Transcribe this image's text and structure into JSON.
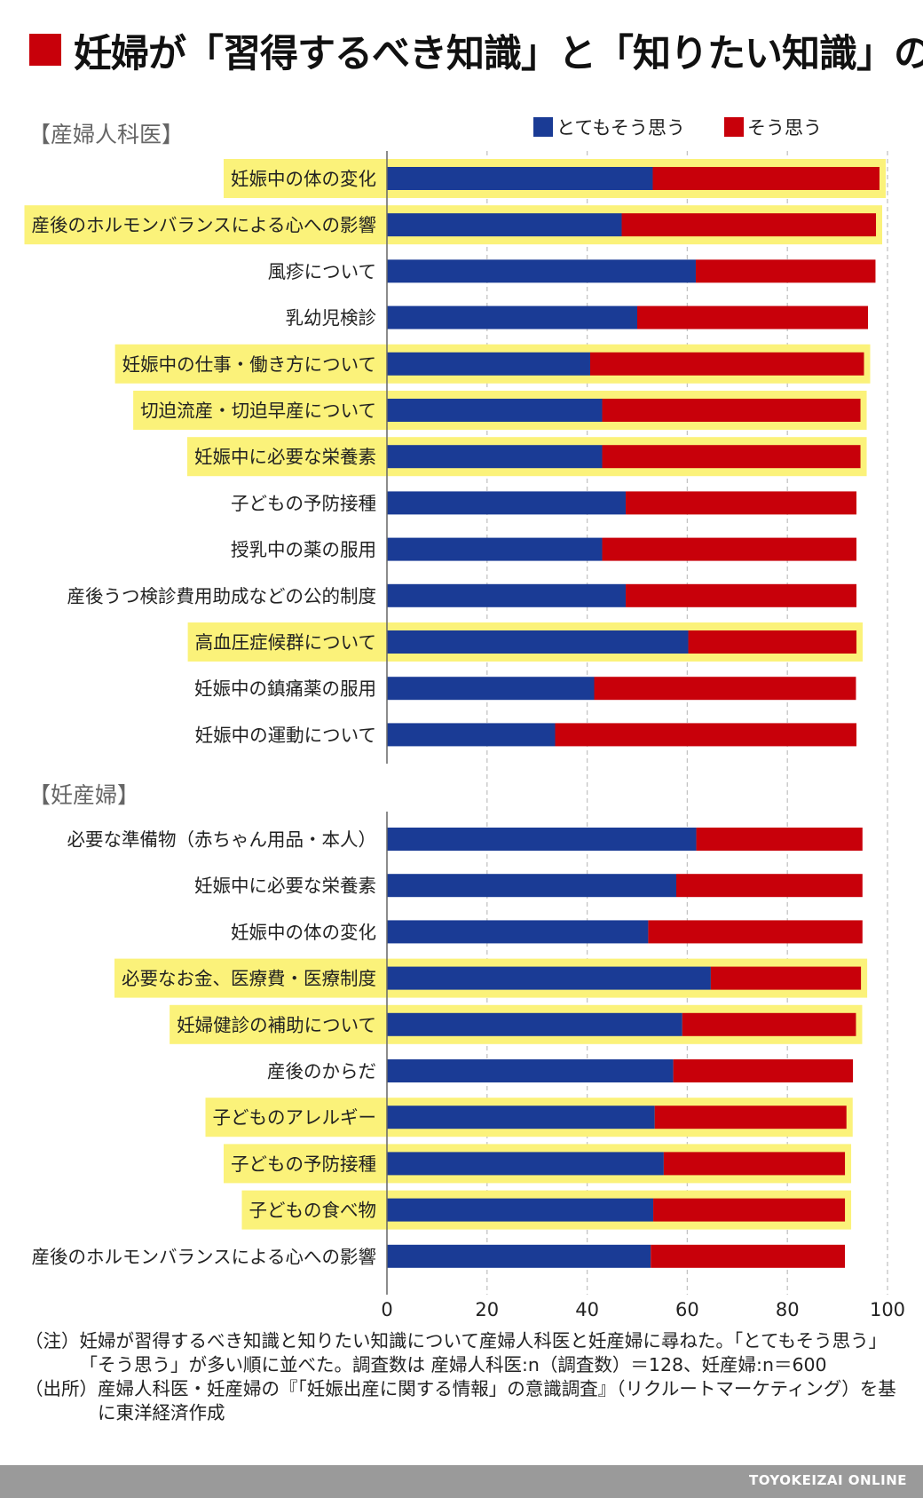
{
  "title": "妊婦が「習得するべき知識」と「知りたい知識」の差",
  "colors": {
    "title_mark": "#c8000a",
    "series_strong": "#1a3b95",
    "series_agree": "#c8000a",
    "highlight": "#fbf27a",
    "footer_bg": "#9a9a9a"
  },
  "chart_data": {
    "type": "bar",
    "orientation": "horizontal",
    "stacked": true,
    "x_ticks": [
      "0",
      "20",
      "40",
      "60",
      "80",
      "100"
    ],
    "x_unit": "(%)",
    "xlim": [
      0,
      100
    ],
    "grid": "vertical dashed",
    "legend_position": "top-right",
    "series_names": [
      "とてもそう思う",
      "そう思う"
    ],
    "groups": [
      {
        "label": "【産婦人科医】",
        "categories": [
          "妊娠中の体の変化",
          "産後のホルモンバランスによる心への影響",
          "風疹について",
          "乳幼児検診",
          "妊娠中の仕事・働き方について",
          "切迫流産・切迫早産について",
          "妊娠中に必要な栄養素",
          "子どもの予防接種",
          "授乳中の薬の服用",
          "産後うつ検診費用助成などの公的制度",
          "高血圧症候群について",
          "妊娠中の鎮痛薬の服用",
          "妊娠中の運動について"
        ],
        "highlighted": [
          true,
          true,
          false,
          false,
          true,
          true,
          true,
          false,
          false,
          false,
          true,
          false,
          false
        ],
        "series": [
          {
            "name": "とてもそう思う",
            "values": [
              53.1,
              46.9,
              61.7,
              50.0,
              40.6,
              43.0,
              43.0,
              47.7,
              43.0,
              47.7,
              60.2,
              41.4,
              33.6
            ]
          },
          {
            "name": "そう思う",
            "values": [
              45.3,
              50.8,
              35.9,
              46.1,
              54.7,
              51.6,
              51.6,
              46.1,
              50.8,
              46.1,
              33.6,
              52.3,
              60.2
            ]
          }
        ]
      },
      {
        "label": "【妊産婦】",
        "categories": [
          "必要な準備物（赤ちゃん用品・本人）",
          "妊娠中に必要な栄養素",
          "妊娠中の体の変化",
          "必要なお金、医療費・医療制度",
          "妊婦健診の補助について",
          "産後のからだ",
          "子どものアレルギー",
          "子どもの予防接種",
          "子どもの食べ物",
          "産後のホルモンバランスによる心への影響"
        ],
        "highlighted": [
          false,
          false,
          false,
          true,
          true,
          false,
          true,
          true,
          true,
          false
        ],
        "series": [
          {
            "name": "とてもそう思う",
            "values": [
              61.8,
              57.8,
              52.2,
              64.7,
              59.0,
              57.2,
              53.5,
              55.3,
              53.2,
              52.7
            ]
          },
          {
            "name": "そう思う",
            "values": [
              33.2,
              37.2,
              42.8,
              30.0,
              34.7,
              35.9,
              38.3,
              36.2,
              38.3,
              38.8
            ]
          }
        ]
      }
    ]
  },
  "notes": [
    {
      "prefix": "（注）",
      "text": "妊婦が習得するべき知識と知りたい知識について産婦人科医と妊産婦に尋ねた。「とてもそう思う」「そう思う」が多い順に並べた。調査数は 産婦人科医:n（調査数）＝128、妊産婦:n＝600"
    },
    {
      "prefix": "（出所）",
      "text": "産婦人科医・妊産婦の『「妊娠出産に関する情報」の意識調査』（リクルートマーケティング）を基に東洋経済作成"
    }
  ],
  "footer": "TOYOKEIZAI ONLINE"
}
